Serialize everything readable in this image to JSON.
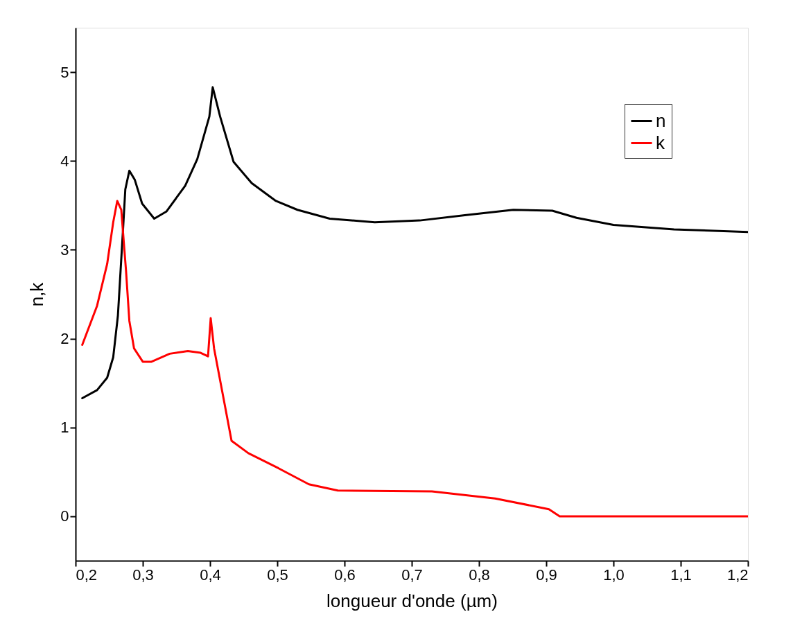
{
  "chart_data": {
    "type": "line",
    "xlabel": "longueur d'onde (µm)",
    "ylabel": "n,k",
    "xlim": [
      0.2,
      1.2
    ],
    "ylim": [
      -0.5,
      5.5
    ],
    "xticks": [
      {
        "value": 0.2,
        "label": "0,2"
      },
      {
        "value": 0.3,
        "label": "0,3"
      },
      {
        "value": 0.4,
        "label": "0,4"
      },
      {
        "value": 0.5,
        "label": "0,5"
      },
      {
        "value": 0.6,
        "label": "0,6"
      },
      {
        "value": 0.7,
        "label": "0,7"
      },
      {
        "value": 0.8,
        "label": "0,8"
      },
      {
        "value": 0.9,
        "label": "0,9"
      },
      {
        "value": 1.0,
        "label": "1,0"
      },
      {
        "value": 1.1,
        "label": "1,1"
      },
      {
        "value": 1.2,
        "label": "1,2"
      }
    ],
    "yticks": [
      0,
      1,
      2,
      3,
      4,
      5
    ],
    "grid": false,
    "legend": "top right",
    "marker": "none",
    "line_style": "solid",
    "series": [
      {
        "name": "n",
        "color": "#000000",
        "x": [
          0.21,
          0.232,
          0.247,
          0.256,
          0.263,
          0.267,
          0.271,
          0.274,
          0.28,
          0.288,
          0.299,
          0.317,
          0.335,
          0.363,
          0.381,
          0.399,
          0.404,
          0.415,
          0.435,
          0.462,
          0.498,
          0.53,
          0.578,
          0.645,
          0.712,
          0.779,
          0.851,
          0.909,
          0.945,
          1.0,
          1.09,
          1.2
        ],
        "values": [
          1.33,
          1.42,
          1.56,
          1.79,
          2.26,
          2.77,
          3.28,
          3.68,
          3.89,
          3.79,
          3.52,
          3.35,
          3.43,
          3.72,
          4.02,
          4.5,
          4.83,
          4.5,
          3.99,
          3.75,
          3.55,
          3.45,
          3.35,
          3.31,
          3.33,
          3.39,
          3.45,
          3.44,
          3.36,
          3.28,
          3.23,
          3.2
        ]
      },
      {
        "name": "k",
        "color": "#ff0000",
        "x": [
          0.21,
          0.232,
          0.247,
          0.256,
          0.262,
          0.268,
          0.275,
          0.28,
          0.287,
          0.3,
          0.313,
          0.34,
          0.367,
          0.386,
          0.397,
          0.401,
          0.406,
          0.421,
          0.432,
          0.457,
          0.502,
          0.547,
          0.59,
          0.73,
          0.824,
          0.904,
          0.92,
          1.2
        ],
        "values": [
          1.93,
          2.37,
          2.84,
          3.31,
          3.55,
          3.45,
          2.77,
          2.2,
          1.89,
          1.74,
          1.74,
          1.83,
          1.86,
          1.84,
          1.8,
          2.23,
          1.89,
          1.29,
          0.85,
          0.71,
          0.54,
          0.36,
          0.29,
          0.28,
          0.2,
          0.08,
          0.0,
          0.0
        ]
      }
    ]
  }
}
